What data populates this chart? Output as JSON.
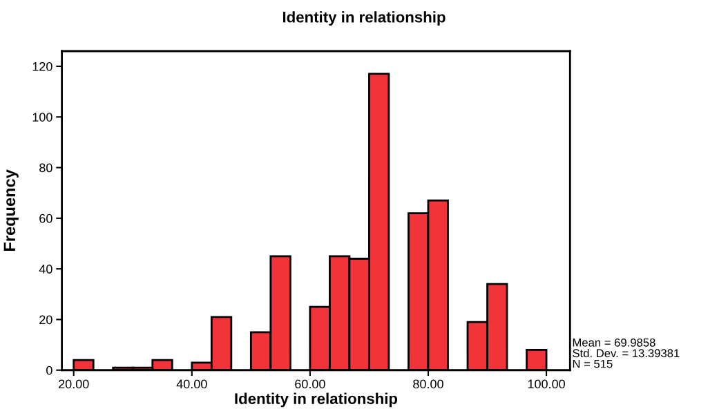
{
  "chart_data": {
    "type": "histogram",
    "title": "Identity in relationship",
    "xlabel": "Identity in relationship",
    "ylabel": "Frequency",
    "bins": [
      20,
      23.333,
      26.667,
      30,
      33.333,
      36.667,
      40,
      43.333,
      46.667,
      50,
      53.333,
      56.667,
      60,
      63.333,
      66.667,
      70,
      73.333,
      76.667,
      80,
      83.333,
      86.667,
      90,
      93.333,
      96.667,
      100
    ],
    "values": [
      4,
      0,
      1,
      1,
      4,
      0,
      3,
      21,
      0,
      15,
      45,
      0,
      25,
      45,
      44,
      117,
      0,
      62,
      67,
      0,
      19,
      34,
      0,
      8
    ],
    "color": "#f0343a",
    "xlim": [
      18,
      104
    ],
    "ylim": [
      0,
      126
    ],
    "xticks": [
      {
        "value": 20,
        "label": "20.00"
      },
      {
        "value": 40,
        "label": "40.00"
      },
      {
        "value": 60,
        "label": "60.00"
      },
      {
        "value": 80,
        "label": "80.00"
      },
      {
        "value": 100,
        "label": "100.00"
      }
    ],
    "yticks": [
      0,
      20,
      40,
      60,
      80,
      100,
      120
    ],
    "annotations": [
      "Mean = 69.9858",
      "Std. Dev. = 13.39381",
      "N = 515"
    ]
  }
}
